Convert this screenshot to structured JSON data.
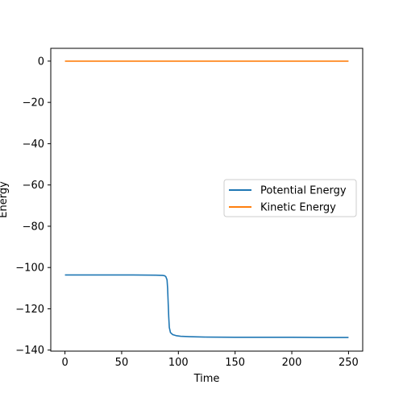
{
  "chart_data": {
    "type": "line",
    "title": "",
    "xlabel": "Time",
    "ylabel": "Energy",
    "xlim": [
      -12.5,
      262.5
    ],
    "ylim": [
      -140.5,
      6.2
    ],
    "xticks": [
      0,
      50,
      100,
      150,
      200,
      250
    ],
    "yticks": [
      0,
      -20,
      -40,
      -60,
      -80,
      -100,
      -120,
      -140
    ],
    "grid": false,
    "legend": "center-right",
    "series": [
      {
        "name": "Potential Energy",
        "color": "#1f77b4",
        "x": [
          0,
          20,
          40,
          60,
          80,
          86,
          88,
          89,
          90,
          90.5,
          91,
          91.5,
          92,
          93,
          95,
          98,
          102,
          110,
          125,
          150,
          175,
          200,
          225,
          250
        ],
        "y": [
          -103.6,
          -103.6,
          -103.6,
          -103.6,
          -103.7,
          -103.8,
          -104.0,
          -104.5,
          -106,
          -110,
          -117,
          -124,
          -129,
          -131.5,
          -132.5,
          -133.0,
          -133.3,
          -133.5,
          -133.7,
          -133.8,
          -133.8,
          -133.8,
          -133.9,
          -133.9
        ]
      },
      {
        "name": "Kinetic Energy",
        "color": "#ff7f0e",
        "x": [
          0,
          250
        ],
        "y": [
          0,
          0
        ]
      }
    ]
  }
}
